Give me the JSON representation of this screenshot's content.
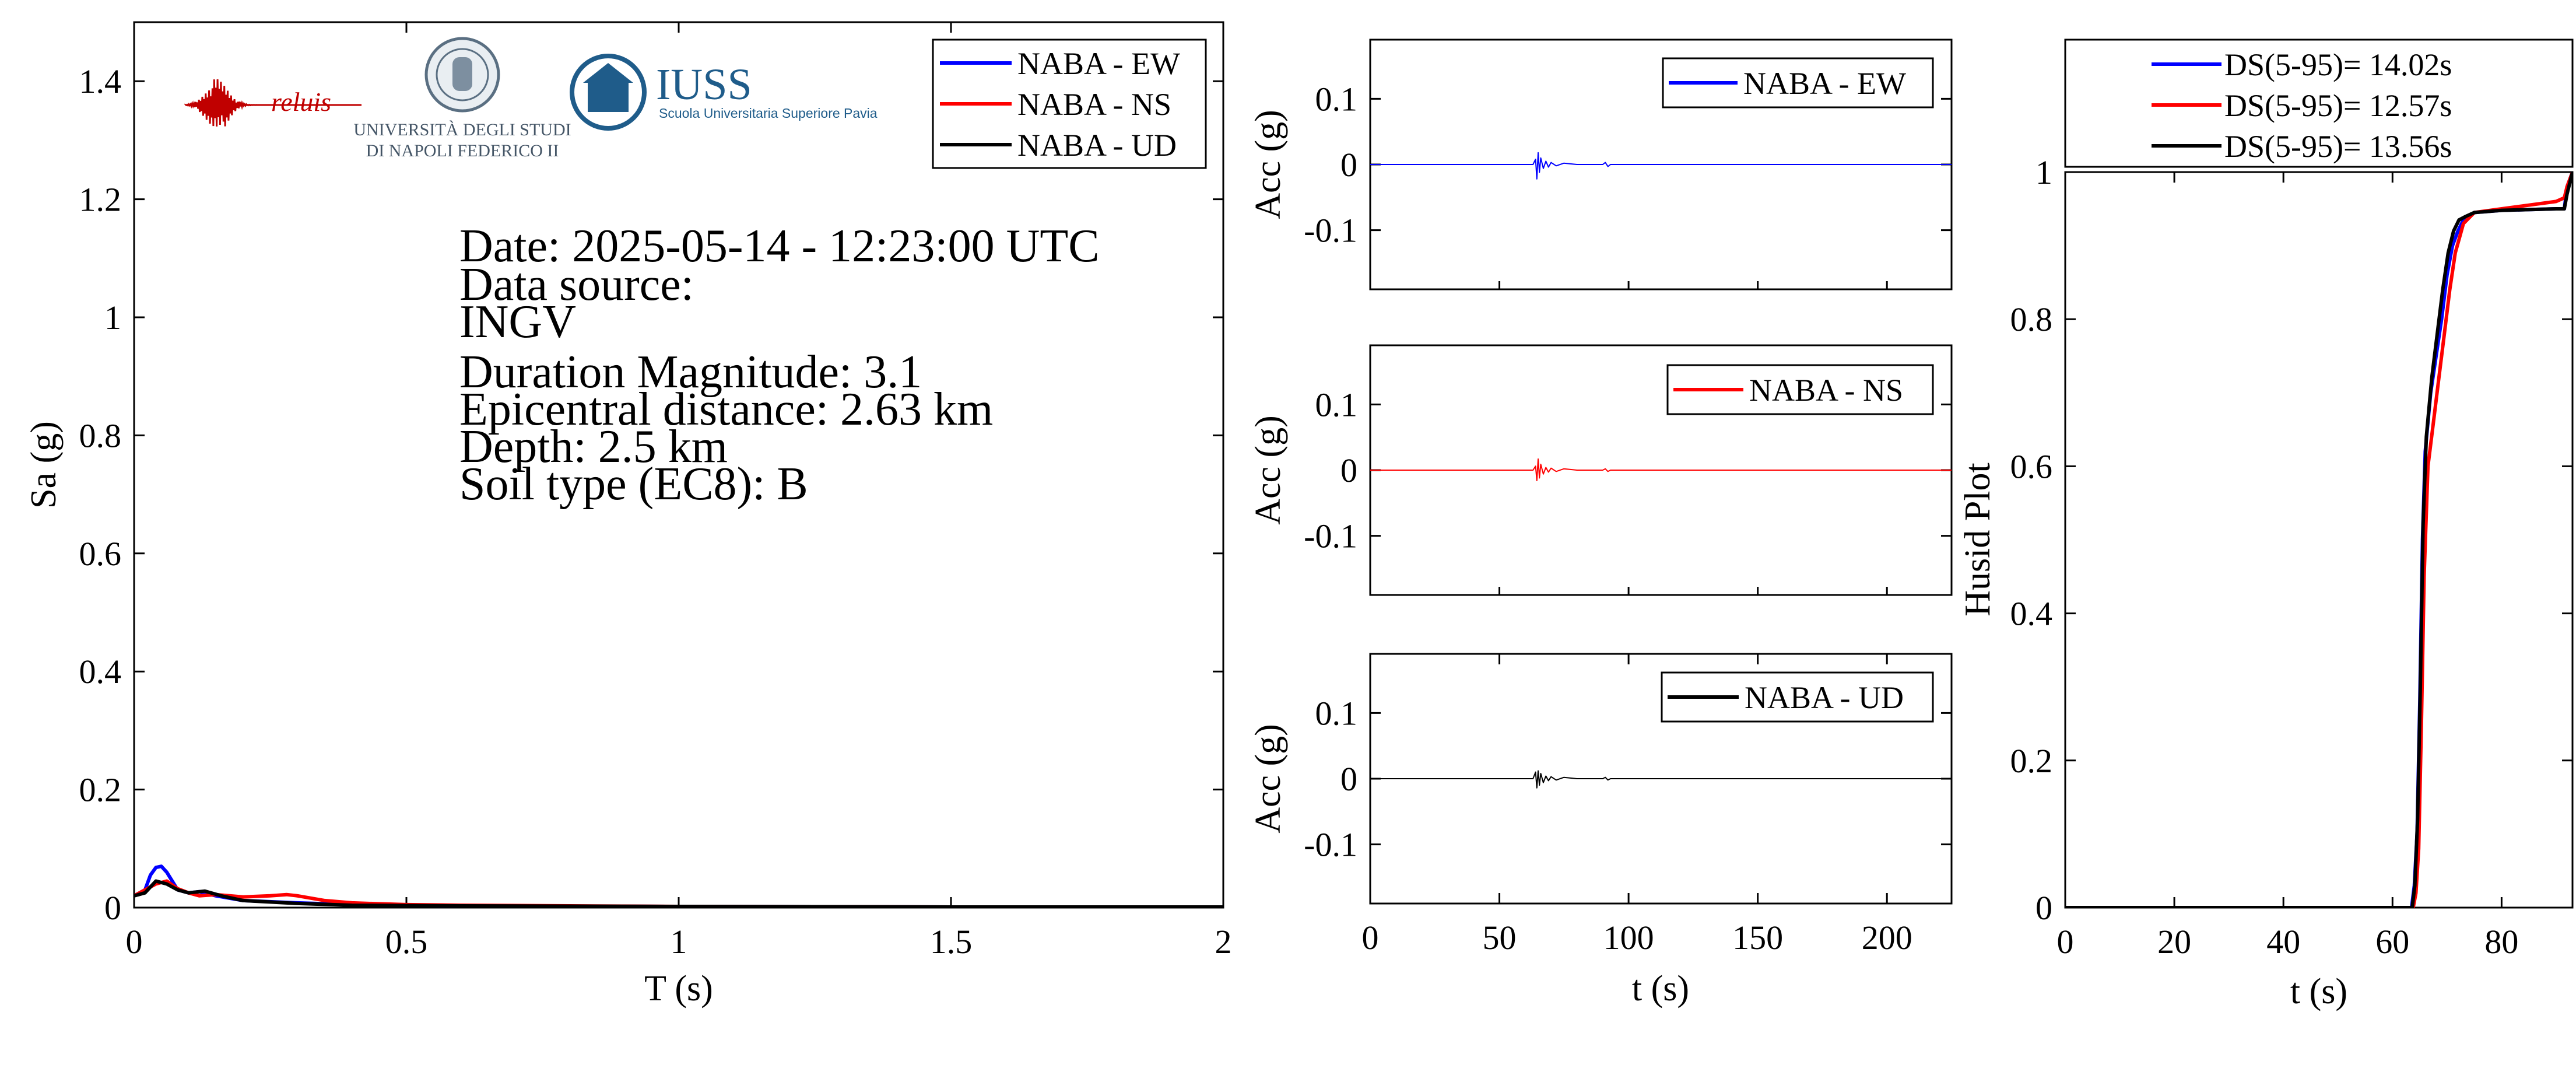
{
  "colors": {
    "ew": "#0000ff",
    "ns": "#ff0000",
    "ud": "#000000",
    "iuss": "#1f5c8a"
  },
  "logos": {
    "reluis": "reluis",
    "unina_line1": "UNIVERSITÀ DEGLI STUDI",
    "unina_line2": "DI NAPOLI FEDERICO II",
    "iuss_title": "IUSS",
    "iuss_subtitle": "Scuola Universitaria Superiore Pavia"
  },
  "info": {
    "date": "Date: 2025-05-14 - 12:23:00 UTC",
    "source_label": "Data source:",
    "source": "INGV",
    "magnitude": "Duration Magnitude: 3.1",
    "distance": "Epicentral distance: 2.63 km",
    "depth": "Depth: 2.5 km",
    "soil": "Soil type (EC8): B"
  },
  "chart_data": [
    {
      "id": "spectrum",
      "type": "line",
      "xlabel": "T (s)",
      "ylabel": "Sa (g)",
      "xlim": [
        0,
        2
      ],
      "ylim": [
        0,
        1.5
      ],
      "xticks": [
        0,
        0.5,
        1,
        1.5,
        2
      ],
      "xtick_labels": [
        "0",
        "0.5",
        "1",
        "1.5",
        "2"
      ],
      "yticks": [
        0,
        0.2,
        0.4,
        0.6,
        0.8,
        1,
        1.2,
        1.4
      ],
      "ytick_labels": [
        "0",
        "0.2",
        "0.4",
        "0.6",
        "0.8",
        "1",
        "1.2",
        "1.4"
      ],
      "legend": "top-right",
      "series": [
        {
          "name": "NABA - EW",
          "color": "#0000ff",
          "x": [
            0,
            0.02,
            0.03,
            0.04,
            0.05,
            0.06,
            0.07,
            0.08,
            0.1,
            0.12,
            0.15,
            0.2,
            0.3,
            0.4,
            0.6,
            1,
            1.5,
            2
          ],
          "y": [
            0.02,
            0.03,
            0.055,
            0.068,
            0.07,
            0.06,
            0.045,
            0.03,
            0.025,
            0.027,
            0.02,
            0.012,
            0.008,
            0.005,
            0.003,
            0.002,
            0.001,
            0.001
          ]
        },
        {
          "name": "NABA - NS",
          "color": "#ff0000",
          "x": [
            0,
            0.02,
            0.04,
            0.06,
            0.08,
            0.1,
            0.12,
            0.15,
            0.2,
            0.25,
            0.28,
            0.3,
            0.35,
            0.4,
            0.5,
            0.6,
            0.8,
            1,
            1.5,
            2
          ],
          "y": [
            0.02,
            0.03,
            0.04,
            0.045,
            0.032,
            0.025,
            0.02,
            0.022,
            0.018,
            0.02,
            0.022,
            0.02,
            0.012,
            0.008,
            0.005,
            0.004,
            0.003,
            0.002,
            0.001,
            0.001
          ]
        },
        {
          "name": "NABA - UD",
          "color": "#000000",
          "x": [
            0,
            0.02,
            0.04,
            0.06,
            0.08,
            0.1,
            0.13,
            0.16,
            0.2,
            0.3,
            0.4,
            0.6,
            1,
            1.5,
            2
          ],
          "y": [
            0.02,
            0.025,
            0.045,
            0.04,
            0.03,
            0.025,
            0.028,
            0.02,
            0.012,
            0.007,
            0.004,
            0.003,
            0.002,
            0.001,
            0.001
          ]
        }
      ]
    },
    {
      "id": "acc-ew",
      "type": "line",
      "ylabel": "Acc (g)",
      "xlim": [
        0,
        225
      ],
      "ylim": [
        -0.19,
        0.19
      ],
      "yticks": [
        -0.1,
        0,
        0.1
      ],
      "ytick_labels": [
        "-0.1",
        "0",
        "0.1"
      ],
      "legend": "top-right",
      "series": [
        {
          "name": "NABA - EW",
          "color": "#0000ff",
          "x": [
            0,
            63,
            64,
            64.5,
            65,
            65.5,
            66,
            67,
            68,
            69,
            70,
            72,
            75,
            80,
            90,
            91,
            92,
            93,
            225
          ],
          "y": [
            0,
            0,
            0.008,
            -0.022,
            0.018,
            -0.012,
            0.01,
            -0.006,
            0.005,
            -0.004,
            0.003,
            -0.002,
            0.002,
            0,
            0,
            0.003,
            -0.003,
            0,
            0
          ]
        }
      ]
    },
    {
      "id": "acc-ns",
      "type": "line",
      "ylabel": "Acc (g)",
      "xlim": [
        0,
        225
      ],
      "ylim": [
        -0.19,
        0.19
      ],
      "yticks": [
        -0.1,
        0,
        0.1
      ],
      "ytick_labels": [
        "-0.1",
        "0",
        "0.1"
      ],
      "legend": "top-right",
      "series": [
        {
          "name": "NABA - NS",
          "color": "#ff0000",
          "x": [
            0,
            63,
            64,
            64.5,
            65,
            65.5,
            66,
            67,
            68,
            69,
            70,
            72,
            75,
            80,
            90,
            91,
            92,
            93,
            225
          ],
          "y": [
            0,
            0,
            0.006,
            -0.016,
            0.017,
            -0.012,
            0.009,
            -0.006,
            0.004,
            -0.003,
            0.003,
            -0.002,
            0.002,
            0,
            0,
            0.002,
            -0.002,
            0,
            0
          ]
        }
      ]
    },
    {
      "id": "acc-ud",
      "type": "line",
      "xlabel": "t (s)",
      "ylabel": "Acc (g)",
      "xlim": [
        0,
        225
      ],
      "ylim": [
        -0.19,
        0.19
      ],
      "xticks": [
        0,
        50,
        100,
        150,
        200
      ],
      "xtick_labels": [
        "0",
        "50",
        "100",
        "150",
        "200"
      ],
      "yticks": [
        -0.1,
        0,
        0.1
      ],
      "ytick_labels": [
        "-0.1",
        "0",
        "0.1"
      ],
      "legend": "top-right",
      "series": [
        {
          "name": "NABA - UD",
          "color": "#000000",
          "x": [
            0,
            63,
            64,
            64.5,
            65,
            65.5,
            66,
            67,
            68,
            69,
            70,
            72,
            75,
            80,
            90,
            91,
            92,
            93,
            225
          ],
          "y": [
            0,
            0,
            0.01,
            -0.014,
            0.012,
            -0.01,
            0.008,
            -0.006,
            0.004,
            -0.003,
            0.003,
            -0.002,
            0.002,
            0,
            0,
            0.002,
            -0.002,
            0,
            0
          ]
        }
      ]
    },
    {
      "id": "husid",
      "type": "line",
      "xlabel": "t (s)",
      "ylabel": "Husid Plot",
      "xlim": [
        0,
        93
      ],
      "ylim": [
        0,
        1
      ],
      "xticks": [
        0,
        20,
        40,
        60,
        80
      ],
      "xtick_labels": [
        "0",
        "20",
        "40",
        "60",
        "80"
      ],
      "yticks": [
        0,
        0.2,
        0.4,
        0.6,
        0.8,
        1
      ],
      "ytick_labels": [
        "0",
        "0.2",
        "0.4",
        "0.6",
        "0.8",
        "1"
      ],
      "legend": "top",
      "series": [
        {
          "name": "DS(5-95)= 14.02s",
          "color": "#0000ff",
          "x": [
            0,
            63.5,
            64,
            64.5,
            65,
            65.5,
            66,
            67,
            68,
            69,
            70,
            71,
            72,
            73,
            75,
            80,
            90,
            91.5,
            92,
            93
          ],
          "y": [
            0,
            0,
            0.03,
            0.1,
            0.28,
            0.5,
            0.62,
            0.7,
            0.75,
            0.8,
            0.86,
            0.9,
            0.92,
            0.935,
            0.945,
            0.948,
            0.95,
            0.95,
            0.98,
            1
          ]
        },
        {
          "name": "DS(5-95)= 12.57s",
          "color": "#ff0000",
          "x": [
            0,
            63.8,
            64.3,
            64.8,
            65.3,
            65.8,
            66.5,
            67.5,
            68.5,
            69.5,
            70.5,
            71.5,
            73,
            75,
            80,
            85,
            90,
            91.5,
            92,
            93
          ],
          "y": [
            0,
            0,
            0.02,
            0.08,
            0.25,
            0.45,
            0.6,
            0.66,
            0.72,
            0.78,
            0.84,
            0.89,
            0.93,
            0.945,
            0.95,
            0.955,
            0.96,
            0.965,
            0.98,
            1
          ]
        },
        {
          "name": "DS(5-95)= 13.56s",
          "color": "#000000",
          "x": [
            0,
            63.6,
            64.1,
            64.6,
            65.1,
            65.6,
            66.2,
            67.2,
            68.2,
            69.2,
            70.2,
            71.2,
            72.2,
            73.5,
            75,
            80,
            90,
            91.5,
            92,
            93
          ],
          "y": [
            0,
            0,
            0.03,
            0.12,
            0.3,
            0.52,
            0.64,
            0.72,
            0.78,
            0.84,
            0.89,
            0.92,
            0.935,
            0.94,
            0.945,
            0.948,
            0.95,
            0.95,
            0.97,
            1
          ]
        }
      ]
    }
  ]
}
